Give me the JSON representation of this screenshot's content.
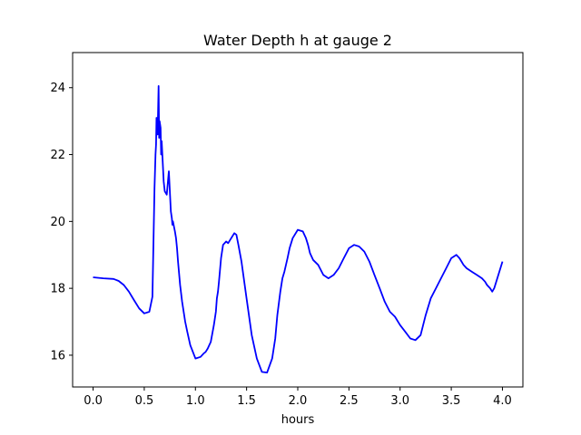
{
  "chart_data": {
    "type": "line",
    "title": "Water Depth h at gauge 2",
    "xlabel": "hours",
    "ylabel": "",
    "xlim": [
      -0.2,
      4.2
    ],
    "ylim": [
      15.05,
      25.05
    ],
    "xticks": [
      0.0,
      0.5,
      1.0,
      1.5,
      2.0,
      2.5,
      3.0,
      3.5,
      4.0
    ],
    "xtick_labels": [
      "0.0",
      "0.5",
      "1.0",
      "1.5",
      "2.0",
      "2.5",
      "3.0",
      "3.5",
      "4.0"
    ],
    "yticks": [
      16,
      18,
      20,
      22,
      24
    ],
    "ytick_labels": [
      "16",
      "18",
      "20",
      "22",
      "24"
    ],
    "grid": false,
    "legend": "none",
    "series": [
      {
        "color": "#0000ff",
        "x": [
          0.0,
          0.1,
          0.2,
          0.25,
          0.3,
          0.35,
          0.4,
          0.45,
          0.5,
          0.55,
          0.58,
          0.6,
          0.61,
          0.615,
          0.62,
          0.63,
          0.64,
          0.645,
          0.65,
          0.66,
          0.665,
          0.67,
          0.68,
          0.69,
          0.7,
          0.72,
          0.74,
          0.75,
          0.76,
          0.77,
          0.775,
          0.78,
          0.8,
          0.81,
          0.82,
          0.83,
          0.85,
          0.87,
          0.9,
          0.92,
          0.95,
          1.0,
          1.05,
          1.08,
          1.1,
          1.12,
          1.15,
          1.18,
          1.2,
          1.21,
          1.22,
          1.23,
          1.25,
          1.27,
          1.3,
          1.32,
          1.35,
          1.38,
          1.4,
          1.42,
          1.45,
          1.5,
          1.55,
          1.6,
          1.65,
          1.7,
          1.75,
          1.78,
          1.8,
          1.83,
          1.85,
          1.87,
          1.9,
          1.92,
          1.95,
          2.0,
          2.05,
          2.08,
          2.1,
          2.12,
          2.15,
          2.2,
          2.25,
          2.3,
          2.35,
          2.4,
          2.45,
          2.5,
          2.55,
          2.6,
          2.65,
          2.7,
          2.75,
          2.8,
          2.85,
          2.9,
          2.95,
          3.0,
          3.05,
          3.1,
          3.15,
          3.2,
          3.25,
          3.3,
          3.35,
          3.4,
          3.45,
          3.5,
          3.55,
          3.58,
          3.6,
          3.62,
          3.65,
          3.7,
          3.75,
          3.8,
          3.83,
          3.85,
          3.88,
          3.9,
          3.92,
          3.95,
          4.0
        ],
        "y": [
          18.33,
          18.3,
          18.28,
          18.22,
          18.1,
          17.9,
          17.65,
          17.4,
          17.25,
          17.3,
          17.75,
          21.0,
          22.0,
          22.3,
          23.1,
          22.6,
          24.05,
          22.5,
          23.0,
          22.8,
          22.0,
          22.4,
          21.8,
          21.2,
          20.9,
          20.8,
          21.5,
          20.9,
          20.3,
          20.1,
          19.9,
          20.0,
          19.7,
          19.5,
          19.2,
          18.8,
          18.1,
          17.6,
          17.0,
          16.7,
          16.3,
          15.9,
          15.95,
          16.05,
          16.1,
          16.2,
          16.4,
          16.9,
          17.3,
          17.7,
          17.9,
          18.2,
          18.9,
          19.3,
          19.4,
          19.35,
          19.5,
          19.65,
          19.6,
          19.3,
          18.8,
          17.7,
          16.6,
          15.9,
          15.5,
          15.48,
          15.9,
          16.5,
          17.2,
          17.9,
          18.3,
          18.5,
          18.9,
          19.2,
          19.5,
          19.75,
          19.7,
          19.5,
          19.3,
          19.05,
          18.85,
          18.7,
          18.4,
          18.3,
          18.4,
          18.6,
          18.9,
          19.2,
          19.3,
          19.25,
          19.1,
          18.8,
          18.4,
          18.0,
          17.6,
          17.3,
          17.15,
          16.9,
          16.7,
          16.5,
          16.45,
          16.6,
          17.2,
          17.7,
          18.0,
          18.3,
          18.6,
          18.9,
          19.0,
          18.9,
          18.8,
          18.7,
          18.6,
          18.5,
          18.4,
          18.3,
          18.2,
          18.1,
          18.0,
          17.9,
          18.0,
          18.3,
          18.8
        ]
      }
    ]
  }
}
